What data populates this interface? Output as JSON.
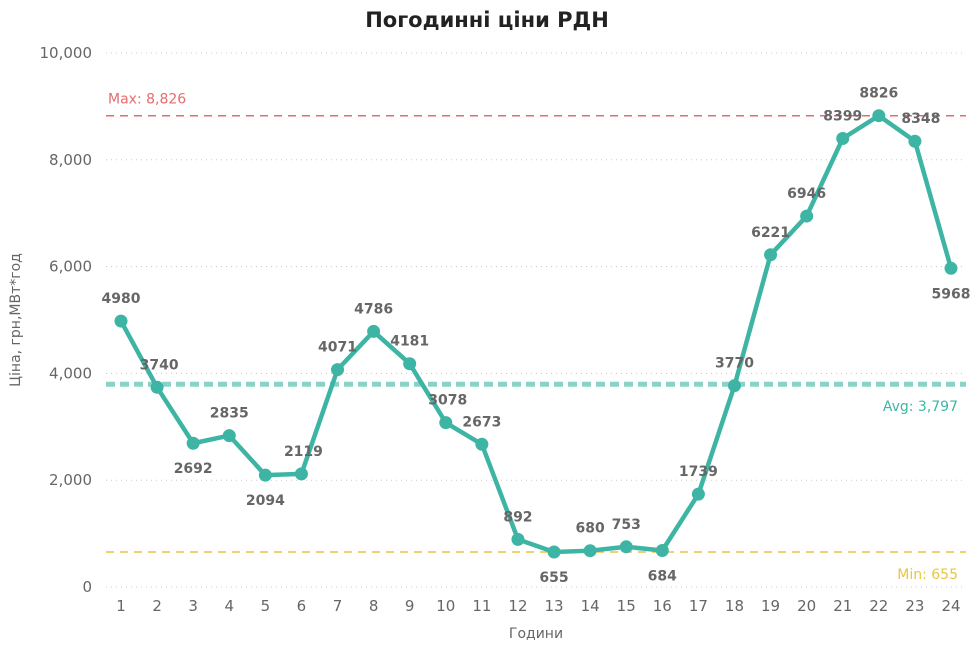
{
  "chart_data": {
    "type": "line",
    "title": "Погодинні ціни РДН",
    "xlabel": "Години",
    "ylabel": "Ціна, грн,МВт*год",
    "ylim": [
      0,
      10000
    ],
    "ytick_labels": [
      "0",
      "2,000",
      "4,000",
      "6,000",
      "8,000",
      "10,000"
    ],
    "ytick_values": [
      0,
      2000,
      4000,
      6000,
      8000,
      10000
    ],
    "x": [
      "1",
      "2",
      "3",
      "4",
      "5",
      "6",
      "7",
      "8",
      "9",
      "10",
      "11",
      "12",
      "13",
      "14",
      "15",
      "16",
      "17",
      "18",
      "19",
      "20",
      "21",
      "22",
      "23",
      "24"
    ],
    "series": [
      {
        "values": [
          4980,
          3740,
          2692,
          2835,
          2094,
          2119,
          4071,
          4786,
          4181,
          3078,
          2673,
          892,
          655,
          680,
          753,
          684,
          1739,
          3770,
          6221,
          6946,
          8399,
          8826,
          8348,
          5968
        ],
        "color": "#3eb5a4"
      }
    ],
    "reference_lines": [
      {
        "label": "Max: 8,826",
        "value": 8826,
        "color": "#e66c6c",
        "style": "dashed"
      },
      {
        "label": "Avg: 3,797",
        "value": 3797,
        "color": "#3eb5a4",
        "style": "thick-dashed"
      },
      {
        "label": "Min: 655",
        "value": 655,
        "color": "#e8c640",
        "style": "dashed"
      }
    ],
    "grid": "horizontal-dotted",
    "legend": "none"
  }
}
